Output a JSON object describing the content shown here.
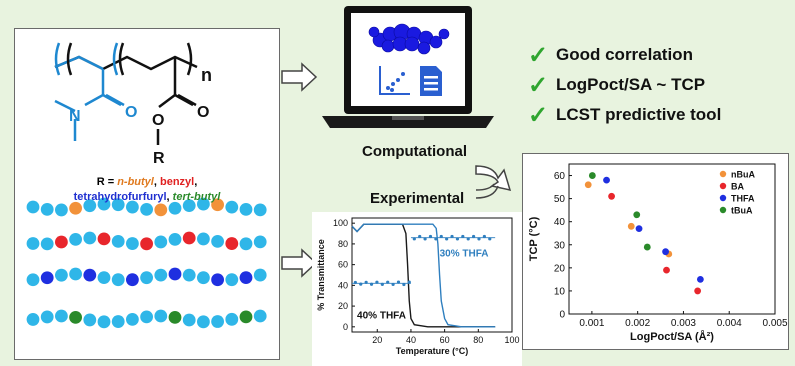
{
  "polymer": {
    "subscript_n": "n",
    "substituent_prefix": "R = ",
    "substituents": [
      {
        "text": "n-butyl",
        "color": "#e07a1f"
      },
      {
        "text": "benzyl",
        "color": "#e02020"
      },
      {
        "text": "tetrahydrofurfuryl",
        "color": "#1f2fd0"
      },
      {
        "text": "tert-butyl",
        "color": "#2a8a2a"
      }
    ],
    "sep": ", ",
    "atoms": {
      "N": "N",
      "O1": "O",
      "O2": "O",
      "O3": "O",
      "R": "R"
    }
  },
  "labels": {
    "computational": "Computational",
    "experimental": "Experimental"
  },
  "checklist": [
    "Good correlation",
    "LogPoct/SA ~ TCP",
    "LCST predictive tool"
  ],
  "transmittance_chart": {
    "type": "line",
    "ylabel": "% Transmittance",
    "xlabel": "Temperature (°C)",
    "xlim": [
      5,
      100
    ],
    "ylim": [
      -5,
      105
    ],
    "xticks": [
      20,
      40,
      60,
      80,
      100
    ],
    "yticks": [
      0,
      20,
      40,
      60,
      80,
      100
    ],
    "series": [
      {
        "name": "40% THFA",
        "color": "#1a1a1a",
        "x": [
          5,
          8,
          12,
          20,
          30,
          35,
          37,
          38,
          39,
          40,
          42,
          50,
          60,
          80,
          90
        ],
        "y": [
          97,
          92,
          99,
          99,
          99,
          99,
          90,
          60,
          25,
          8,
          2,
          0,
          0,
          0,
          0
        ]
      },
      {
        "name": "30% THFA",
        "color": "#2f7fbf",
        "x": [
          5,
          8,
          12,
          20,
          40,
          50,
          53,
          55,
          56,
          57,
          58,
          60,
          62,
          70,
          80,
          90
        ],
        "y": [
          97,
          92,
          99,
          99,
          99,
          99,
          99,
          95,
          80,
          50,
          25,
          8,
          2,
          0,
          0,
          0
        ]
      }
    ],
    "markers": [
      {
        "label": "40% THFA",
        "x_range": [
          5,
          40
        ],
        "y": 42
      },
      {
        "label": "30% THFA",
        "x_range": [
          40,
          90
        ],
        "y": 86
      }
    ]
  },
  "chart_data": {
    "type": "scatter",
    "xlabel": "LogPoct/SA (Å²)",
    "ylabel": "TCP (°C)",
    "xlim": [
      0.0005,
      0.005
    ],
    "ylim": [
      0,
      65
    ],
    "xticks": [
      "0.001",
      "0.002",
      "0.003",
      "0.004",
      "0.005"
    ],
    "yticks": [
      0,
      10,
      20,
      30,
      40,
      50,
      60
    ],
    "legend_position": "top-right",
    "series": [
      {
        "name": "nBuA",
        "color": "#f2923a",
        "x": [
          0.00092,
          0.00186,
          0.00268
        ],
        "y": [
          56,
          38,
          26
        ]
      },
      {
        "name": "BA",
        "color": "#e8262c",
        "x": [
          0.00143,
          0.00263,
          0.00331
        ],
        "y": [
          51,
          19,
          10
        ]
      },
      {
        "name": "THFA",
        "color": "#1f2fe0",
        "x": [
          0.00132,
          0.00203,
          0.00261,
          0.00337
        ],
        "y": [
          58,
          37,
          27,
          15
        ]
      },
      {
        "name": "tBuA",
        "color": "#2a8a2a",
        "x": [
          0.00101,
          0.00198,
          0.00221
        ],
        "y": [
          60,
          43,
          29
        ]
      }
    ]
  }
}
